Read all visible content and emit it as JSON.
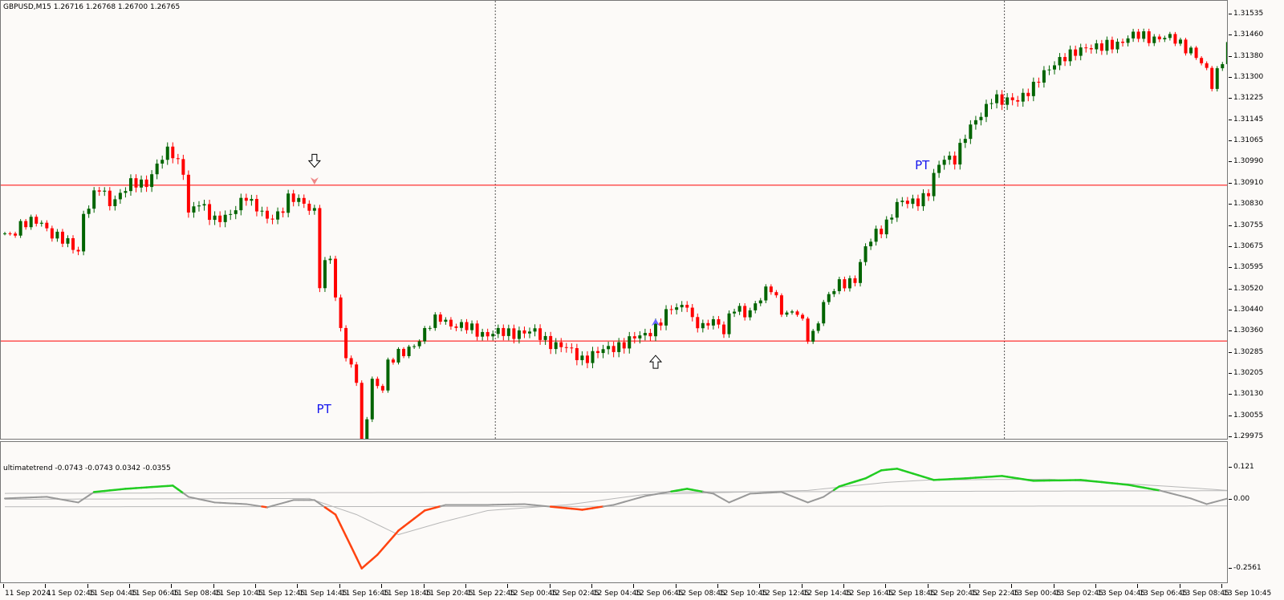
{
  "header": {
    "symbol_info": "GBPUSD,M15  1.26716 1.26768 1.26700 1.26765"
  },
  "indicator": {
    "label": "ultimatetrend -0.0743 -0.0743 0.0342 -0.0355"
  },
  "colors": {
    "bull": "#006400",
    "bear": "#ff0000",
    "level_line": "#ff0000",
    "ind_up": "#22cc22",
    "ind_down": "#ff4411",
    "ind_main": "#999999",
    "ind_thin": "#b8b8b8",
    "pt_text": "#1515ee"
  },
  "price_axis": [
    "1.31535",
    "1.31460",
    "1.31380",
    "1.31300",
    "1.31225",
    "1.31145",
    "1.31065",
    "1.30990",
    "1.30910",
    "1.30830",
    "1.30755",
    "1.30675",
    "1.30595",
    "1.30520",
    "1.30440",
    "1.30360",
    "1.30285",
    "1.30205",
    "1.30130",
    "1.30055",
    "1.29975"
  ],
  "ind_axis": [
    "0.121",
    "0.00",
    "-0.2561"
  ],
  "time_axis": [
    "11 Sep 2024",
    "11 Sep 02:45",
    "11 Sep 04:45",
    "11 Sep 06:45",
    "11 Sep 08:45",
    "11 Sep 10:45",
    "11 Sep 12:45",
    "11 Sep 14:45",
    "11 Sep 16:45",
    "11 Sep 18:45",
    "11 Sep 20:45",
    "11 Sep 22:45",
    "12 Sep 00:45",
    "12 Sep 02:45",
    "12 Sep 04:45",
    "12 Sep 06:45",
    "12 Sep 08:45",
    "12 Sep 10:45",
    "12 Sep 12:45",
    "12 Sep 14:45",
    "12 Sep 16:45",
    "12 Sep 18:45",
    "12 Sep 20:45",
    "12 Sep 22:45",
    "13 Sep 00:45",
    "13 Sep 02:45",
    "13 Sep 04:45",
    "13 Sep 06:45",
    "13 Sep 08:45",
    "13 Sep 10:45"
  ],
  "markers": {
    "pt_label_1": "PT",
    "pt_label_2": "PT"
  },
  "chart_data": {
    "type": "candlestick",
    "symbol": "GBPUSD",
    "timeframe": "M15",
    "ylim": [
      1.29975,
      1.31535
    ],
    "level_lines": [
      1.30905,
      1.3033
    ],
    "close_waypoints": [
      [
        1,
        1.30727
      ],
      [
        3,
        1.30757
      ],
      [
        7,
        1.30771
      ],
      [
        9,
        1.30727
      ],
      [
        11,
        1.30697
      ],
      [
        14,
        1.30668
      ],
      [
        15,
        1.30801
      ],
      [
        18,
        1.3089
      ],
      [
        20,
        1.30845
      ],
      [
        22,
        1.30875
      ],
      [
        24,
        1.30904
      ],
      [
        27,
        1.30919
      ],
      [
        29,
        1.30978
      ],
      [
        31,
        1.31023
      ],
      [
        32,
        1.31023
      ],
      [
        34,
        1.30964
      ],
      [
        35,
        1.30801
      ],
      [
        37,
        1.30831
      ],
      [
        40,
        1.30786
      ],
      [
        43,
        1.30786
      ],
      [
        46,
        1.30875
      ],
      [
        47,
        1.30845
      ],
      [
        50,
        1.30771
      ],
      [
        52,
        1.30801
      ],
      [
        54,
        1.3086
      ],
      [
        57,
        1.30831
      ],
      [
        59,
        1.30816
      ],
      [
        60,
        1.30549
      ],
      [
        61,
        1.30608
      ],
      [
        62,
        1.30638
      ],
      [
        63,
        1.30475
      ],
      [
        65,
        1.30283
      ],
      [
        67,
        1.30194
      ],
      [
        68,
        1.29942
      ],
      [
        69,
        1.30046
      ],
      [
        70,
        1.30179
      ],
      [
        72,
        1.30164
      ],
      [
        73,
        1.30253
      ],
      [
        76,
        1.30283
      ],
      [
        79,
        1.30342
      ],
      [
        81,
        1.30386
      ],
      [
        83,
        1.30416
      ],
      [
        86,
        1.30386
      ],
      [
        89,
        1.30372
      ],
      [
        92,
        1.30357
      ],
      [
        95,
        1.30357
      ],
      [
        98,
        1.30366
      ],
      [
        101,
        1.30357
      ],
      [
        104,
        1.30327
      ],
      [
        107,
        1.30298
      ],
      [
        110,
        1.30268
      ],
      [
        113,
        1.30283
      ],
      [
        116,
        1.30312
      ],
      [
        119,
        1.30327
      ],
      [
        122,
        1.30357
      ],
      [
        125,
        1.30401
      ],
      [
        127,
        1.30446
      ],
      [
        130,
        1.30475
      ],
      [
        131,
        1.30401
      ],
      [
        133,
        1.30372
      ],
      [
        135,
        1.30416
      ],
      [
        137,
        1.30372
      ],
      [
        139,
        1.30446
      ],
      [
        141,
        1.30431
      ],
      [
        144,
        1.3049
      ],
      [
        146,
        1.3052
      ],
      [
        148,
        1.30446
      ],
      [
        151,
        1.30431
      ],
      [
        153,
        1.30342
      ],
      [
        154,
        1.30357
      ],
      [
        156,
        1.30475
      ],
      [
        159,
        1.30535
      ],
      [
        162,
        1.30564
      ],
      [
        164,
        1.30668
      ],
      [
        166,
        1.30727
      ],
      [
        168,
        1.30771
      ],
      [
        170,
        1.30831
      ],
      [
        173,
        1.30845
      ],
      [
        176,
        1.30875
      ],
      [
        177,
        1.30934
      ],
      [
        179,
        1.31008
      ],
      [
        181,
        1.31008
      ],
      [
        183,
        1.31082
      ],
      [
        186,
        1.31171
      ],
      [
        188,
        1.3123
      ],
      [
        190,
        1.31206
      ],
      [
        193,
        1.3123
      ],
      [
        196,
        1.3126
      ],
      [
        198,
        1.31319
      ],
      [
        200,
        1.31363
      ],
      [
        203,
        1.31378
      ],
      [
        206,
        1.31423
      ],
      [
        209,
        1.31408
      ],
      [
        211,
        1.31423
      ],
      [
        214,
        1.31452
      ],
      [
        217,
        1.31452
      ],
      [
        220,
        1.31452
      ],
      [
        223,
        1.31437
      ],
      [
        226,
        1.31408
      ],
      [
        229,
        1.31319
      ],
      [
        230,
        1.31275
      ],
      [
        232,
        1.31378
      ],
      [
        233,
        1.31423
      ]
    ],
    "bar_count": 234,
    "period_separators_bar": [
      93,
      190
    ],
    "signals": [
      {
        "type": "sell-arrow",
        "bar": 59,
        "price": 1.30995
      },
      {
        "type": "sell-small",
        "bar": 59,
        "price": 1.30919
      },
      {
        "type": "buy-arrow",
        "bar": 124,
        "price": 1.30253
      },
      {
        "type": "buy-small",
        "bar": 124,
        "price": 1.30401
      },
      {
        "type": "buy-bold",
        "bar": 68,
        "price": 1.299
      },
      {
        "type": "pt",
        "bar": 64,
        "price": 1.301,
        "label": "PT"
      },
      {
        "type": "pt",
        "bar": 178,
        "price": 1.31,
        "label": "PT"
      }
    ],
    "indicator": {
      "name": "ultimatetrend",
      "ylim": [
        -0.2561,
        0.121
      ],
      "main_waypoints": [
        [
          0,
          0.006
        ],
        [
          8,
          0.012
        ],
        [
          14,
          -0.009
        ],
        [
          17,
          0.03
        ],
        [
          23,
          0.042
        ],
        [
          32,
          0.054
        ],
        [
          35,
          0.012
        ],
        [
          40,
          -0.009
        ],
        [
          46,
          -0.015
        ],
        [
          50,
          -0.027
        ],
        [
          55,
          0
        ],
        [
          59,
          0
        ],
        [
          63,
          -0.054
        ],
        [
          66,
          -0.174
        ],
        [
          68,
          -0.255
        ],
        [
          71,
          -0.204
        ],
        [
          75,
          -0.114
        ],
        [
          80,
          -0.039
        ],
        [
          84,
          -0.018
        ],
        [
          92,
          -0.018
        ],
        [
          99,
          -0.015
        ],
        [
          107,
          -0.03
        ],
        [
          110,
          -0.036
        ],
        [
          116,
          -0.018
        ],
        [
          122,
          0.015
        ],
        [
          130,
          0.042
        ],
        [
          135,
          0.024
        ],
        [
          138,
          -0.009
        ],
        [
          142,
          0.024
        ],
        [
          148,
          0.03
        ],
        [
          153,
          -0.009
        ],
        [
          156,
          0.012
        ],
        [
          159,
          0.051
        ],
        [
          164,
          0.081
        ],
        [
          167,
          0.111
        ],
        [
          170,
          0.117
        ],
        [
          177,
          0.075
        ],
        [
          183,
          0.081
        ],
        [
          190,
          0.09
        ],
        [
          196,
          0.072
        ],
        [
          205,
          0.075
        ],
        [
          214,
          0.057
        ],
        [
          220,
          0.036
        ],
        [
          226,
          0.006
        ],
        [
          229,
          -0.015
        ],
        [
          233,
          0.006
        ]
      ],
      "signal_waypoints": [
        [
          0,
          0.003
        ],
        [
          58,
          0.006
        ],
        [
          67,
          -0.054
        ],
        [
          75,
          -0.129
        ],
        [
          83,
          -0.084
        ],
        [
          92,
          -0.039
        ],
        [
          107,
          -0.018
        ],
        [
          122,
          0.021
        ],
        [
          153,
          0.036
        ],
        [
          168,
          0.066
        ],
        [
          176,
          0.075
        ],
        [
          199,
          0.078
        ],
        [
          222,
          0.051
        ],
        [
          233,
          0.036
        ]
      ],
      "upper_band": [
        [
          0,
          0.025
        ],
        [
          233,
          0.035
        ]
      ],
      "lower_band": [
        [
          0,
          -0.025
        ],
        [
          233,
          -0.022
        ]
      ]
    }
  }
}
